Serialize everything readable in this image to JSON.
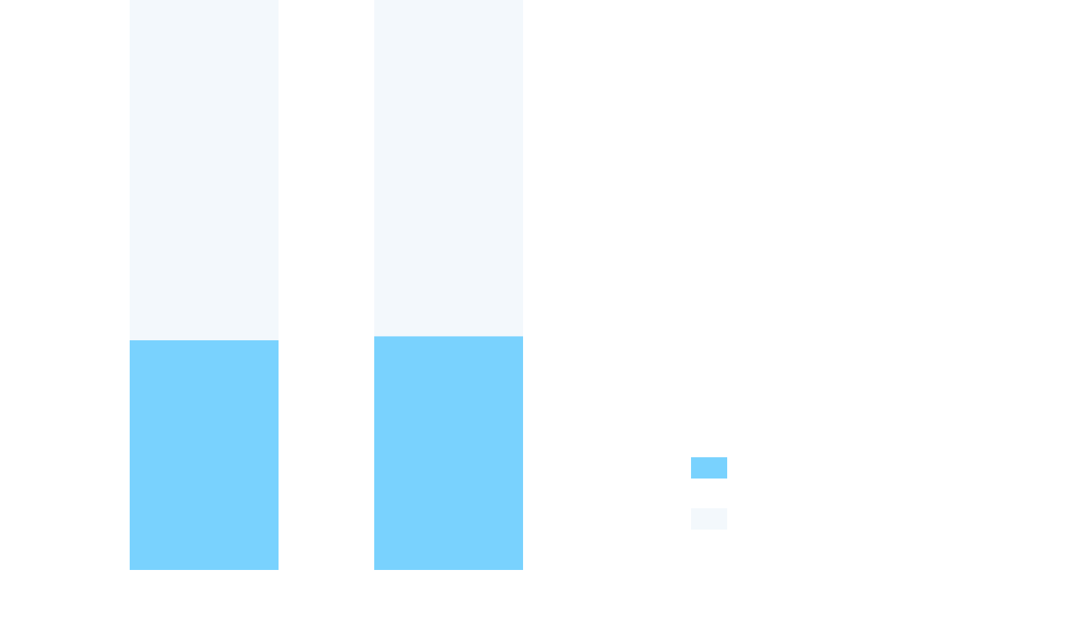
{
  "chart_data": {
    "type": "bar",
    "stacked": true,
    "title": "",
    "xlabel": "",
    "ylabel": "",
    "categories": [
      "",
      ""
    ],
    "ylim": [
      0,
      100
    ],
    "grid": false,
    "legend_position": "right",
    "series": [
      {
        "values": [
          40.3,
          41.0
        ],
        "color": "#79d2fe"
      },
      {
        "values": [
          59.7,
          59.0
        ],
        "color": "#f3f8fc"
      }
    ]
  }
}
